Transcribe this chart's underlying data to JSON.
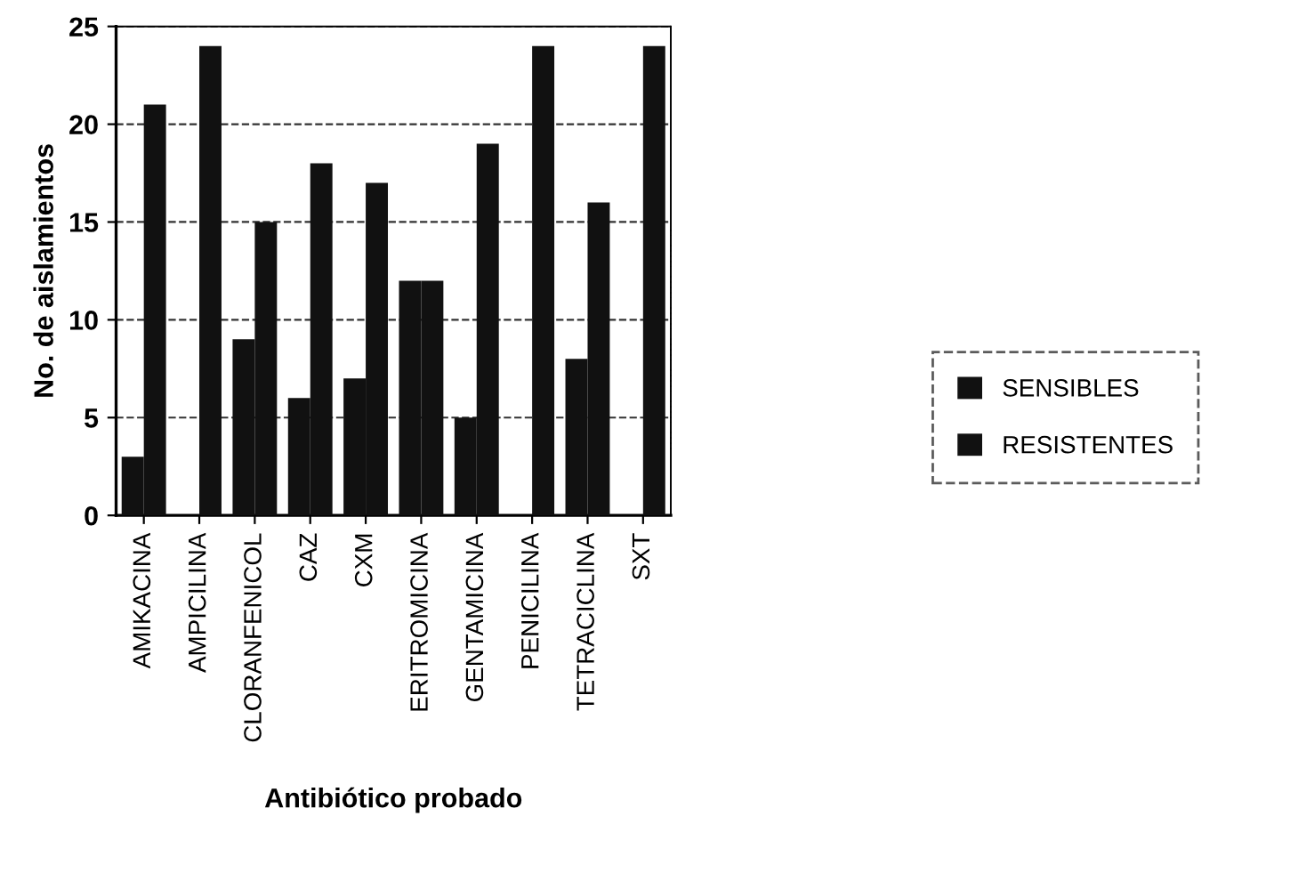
{
  "chart_data": {
    "type": "bar",
    "xlabel": "Antibiótico probado",
    "ylabel": "No. de aislamientos",
    "categories": [
      "AMIKACINA",
      "AMPICILINA",
      "CLORANFENICOL",
      "CAZ",
      "CXM",
      "ERITROMICINA",
      "GENTAMICINA",
      "PENICILINA",
      "TETRACICLINA",
      "SXT"
    ],
    "series": [
      {
        "name": "SENSIBLES",
        "color": "#111111",
        "values": [
          3,
          0,
          9,
          6,
          7,
          12,
          5,
          0,
          8,
          0
        ]
      },
      {
        "name": "RESISTENTES",
        "color": "#111111",
        "values": [
          21,
          24,
          15,
          18,
          17,
          12,
          19,
          24,
          16,
          24
        ]
      }
    ],
    "ylim": [
      0,
      25
    ],
    "yticks": [
      0,
      5,
      10,
      15,
      20,
      25
    ],
    "grid": "y",
    "legend": "right"
  }
}
